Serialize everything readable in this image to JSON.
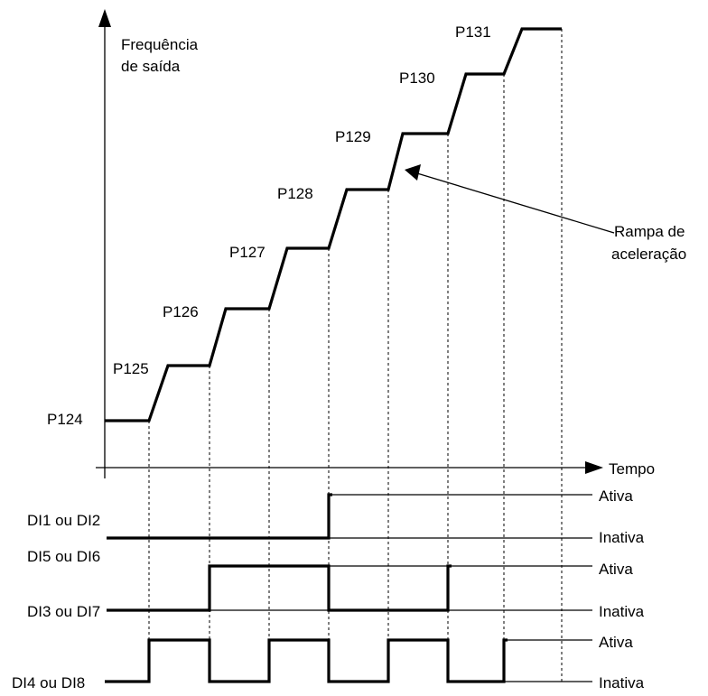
{
  "axis": {
    "y_label_line1": "Frequência",
    "y_label_line2": "de saída",
    "x_label": "Tempo"
  },
  "steps": [
    "P124",
    "P125",
    "P126",
    "P127",
    "P128",
    "P129",
    "P130",
    "P131"
  ],
  "annotation": {
    "line1": "Rampa de",
    "line2": "aceleração"
  },
  "signals": {
    "dl1_dl2": "DI1 ou DI2",
    "dl5_dl6": "DI5 ou DI6",
    "dl3_dl7": "DI3 ou DI7",
    "dl4_dl8": "DI4 ou DI8"
  },
  "states": {
    "active": "Ativa",
    "inactive": "Inativa"
  }
}
